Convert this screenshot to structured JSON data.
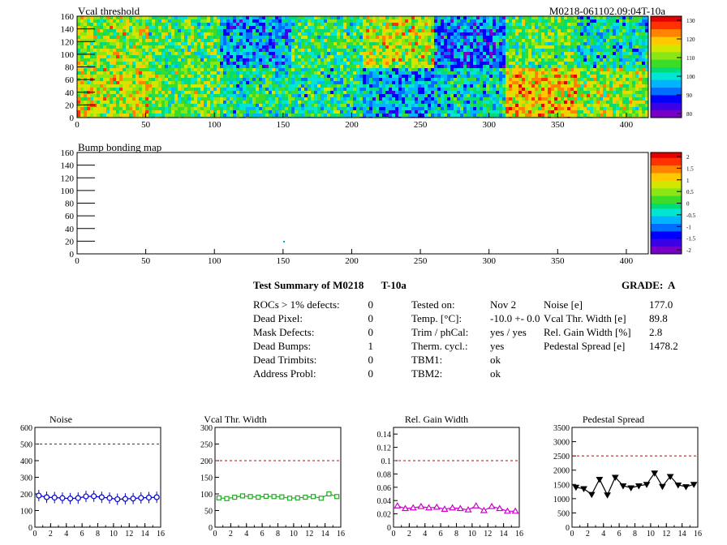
{
  "header": {
    "module_id": "M0218-061102.09:04T-10a"
  },
  "maps": [
    {
      "title": "Vcal threshold",
      "x_ticks": [
        "0",
        "50",
        "100",
        "150",
        "200",
        "250",
        "300",
        "350",
        "400"
      ],
      "y_ticks": [
        "0",
        "20",
        "40",
        "60",
        "80",
        "100",
        "120",
        "140",
        "160"
      ],
      "palette_labels": [
        "80",
        "90",
        "100",
        "110",
        "120",
        "130"
      ]
    },
    {
      "title": "Bump bonding map",
      "x_ticks": [
        "0",
        "50",
        "100",
        "150",
        "200",
        "250",
        "300",
        "350",
        "400"
      ],
      "y_ticks": [
        "0",
        "20",
        "40",
        "60",
        "80",
        "100",
        "120",
        "140",
        "160"
      ],
      "palette_labels": [
        "-2",
        "-1.5",
        "-1",
        "-0.5",
        "0",
        "0.5",
        "1",
        "1.5",
        "2"
      ]
    }
  ],
  "summary": {
    "title": "Test Summary of M0218",
    "test": "T-10a",
    "grade": "GRADE:  A",
    "defects": [
      {
        "label": "ROCs > 1% defects:",
        "value": "0"
      },
      {
        "label": "Dead Pixel:",
        "value": "0"
      },
      {
        "label": "Mask Defects:",
        "value": "0"
      },
      {
        "label": "Dead Bumps:",
        "value": "1"
      },
      {
        "label": "Dead Trimbits:",
        "value": "0"
      },
      {
        "label": "Address Probl:",
        "value": "0"
      }
    ],
    "conditions": [
      {
        "label": "Tested on:",
        "value": "Nov 2"
      },
      {
        "label": "Temp. [°C]:",
        "value": "-10.0 +- 0.0"
      },
      {
        "label": "Trim / phCal:",
        "value": "yes / yes"
      },
      {
        "label": "Therm. cycl.:",
        "value": "yes"
      },
      {
        "label": "TBM1:",
        "value": "ok"
      },
      {
        "label": "TBM2:",
        "value": "ok"
      }
    ],
    "results": [
      {
        "label": "Noise [e]",
        "value": "177.0"
      },
      {
        "label": "Vcal Thr. Width [e]",
        "value": "89.8"
      },
      {
        "label": "Rel. Gain Width [%]",
        "value": "2.8"
      },
      {
        "label": "Pedestal Spread [e]",
        "value": "1478.2"
      }
    ]
  },
  "chart_data": [
    {
      "type": "line",
      "title": "Noise",
      "x": [
        0,
        1,
        2,
        3,
        4,
        5,
        6,
        7,
        8,
        9,
        10,
        11,
        12,
        13,
        14,
        15
      ],
      "values": [
        190,
        180,
        178,
        175,
        172,
        175,
        185,
        186,
        180,
        175,
        168,
        170,
        172,
        176,
        178,
        180
      ],
      "xlim": [
        0,
        16
      ],
      "ylim": [
        0,
        600
      ],
      "threshold": 500,
      "color": "#0000cc",
      "marker": "circle",
      "x_ticks": [
        "0",
        "2",
        "4",
        "6",
        "8",
        "10",
        "12",
        "14",
        "16"
      ],
      "y_ticks": [
        "0",
        "100",
        "200",
        "300",
        "400",
        "500",
        "600"
      ]
    },
    {
      "type": "line",
      "title": "Vcal Thr. Width",
      "x": [
        0,
        1,
        2,
        3,
        4,
        5,
        6,
        7,
        8,
        9,
        10,
        11,
        12,
        13,
        14,
        15
      ],
      "values": [
        88,
        86,
        90,
        94,
        92,
        90,
        93,
        92,
        91,
        87,
        88,
        90,
        92,
        87,
        100,
        92
      ],
      "xlim": [
        0,
        16
      ],
      "ylim": [
        0,
        300
      ],
      "threshold": 200,
      "color": "#22aa22",
      "marker": "square",
      "x_ticks": [
        "0",
        "2",
        "4",
        "6",
        "8",
        "10",
        "12",
        "14",
        "16"
      ],
      "y_ticks": [
        "0",
        "50",
        "100",
        "150",
        "200",
        "250",
        "300"
      ]
    },
    {
      "type": "line",
      "title": "Rel. Gain Width",
      "x": [
        0,
        1,
        2,
        3,
        4,
        5,
        6,
        7,
        8,
        9,
        10,
        11,
        12,
        13,
        14,
        15
      ],
      "values": [
        0.032,
        0.028,
        0.029,
        0.031,
        0.029,
        0.03,
        0.027,
        0.029,
        0.028,
        0.026,
        0.032,
        0.025,
        0.031,
        0.028,
        0.024,
        0.024
      ],
      "xlim": [
        0,
        16
      ],
      "ylim": [
        0,
        0.15
      ],
      "threshold": 0.1,
      "color": "#cc00cc",
      "marker": "triangle",
      "x_ticks": [
        "0",
        "2",
        "4",
        "6",
        "8",
        "10",
        "12",
        "14",
        "16"
      ],
      "y_ticks": [
        "0",
        "0.02",
        "0.04",
        "0.06",
        "0.08",
        "0.1",
        "0.12",
        "0.14"
      ]
    },
    {
      "type": "line",
      "title": "Pedestal Spread",
      "x": [
        0,
        1,
        2,
        3,
        4,
        5,
        6,
        7,
        8,
        9,
        10,
        11,
        12,
        13,
        14,
        15
      ],
      "values": [
        1400,
        1350,
        1150,
        1680,
        1130,
        1750,
        1450,
        1380,
        1450,
        1500,
        1900,
        1430,
        1780,
        1480,
        1420,
        1500
      ],
      "xlim": [
        0,
        16
      ],
      "ylim": [
        0,
        3500
      ],
      "threshold": 2500,
      "color": "#000000",
      "marker": "triangle-down",
      "x_ticks": [
        "0",
        "2",
        "4",
        "6",
        "8",
        "10",
        "12",
        "14",
        "16"
      ],
      "y_ticks": [
        "0",
        "500",
        "1000",
        "1500",
        "2000",
        "2500",
        "3000",
        "3500"
      ]
    }
  ]
}
